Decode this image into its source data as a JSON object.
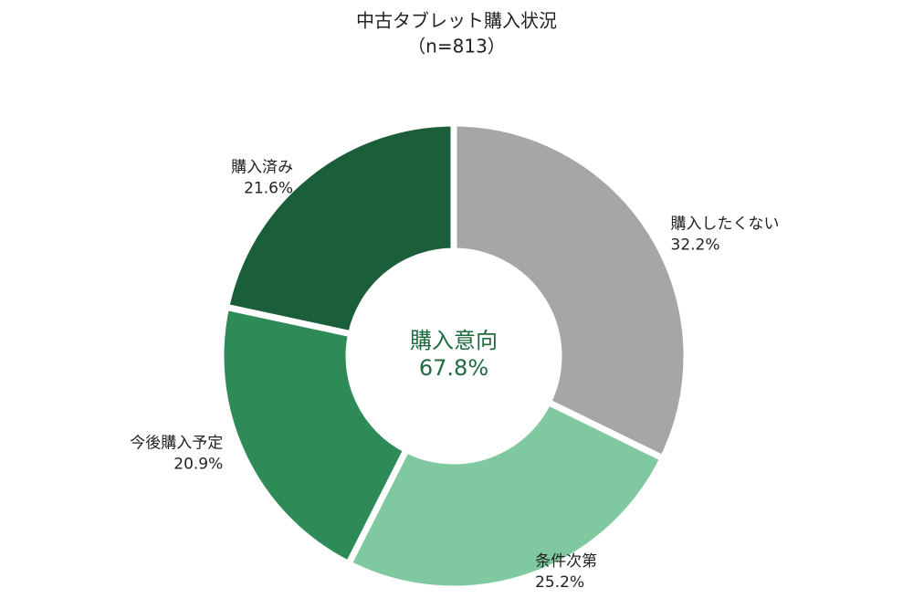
{
  "chart_data": {
    "type": "donut",
    "title": "中古タブレット購入状況",
    "subtitle": "（n=813）",
    "categories": [
      "購入したくない",
      "条件次第",
      "今後購入予定",
      "購入済み"
    ],
    "values": [
      32.2,
      25.2,
      20.9,
      21.6
    ],
    "value_labels": [
      "32.2%",
      "25.2%",
      "20.9%",
      "21.6%"
    ],
    "colors": [
      "#a6a6a6",
      "#80c9a0",
      "#2e8b57",
      "#1b5e3a"
    ],
    "center_text": "購入意向",
    "center_value_label": "67.8%"
  }
}
